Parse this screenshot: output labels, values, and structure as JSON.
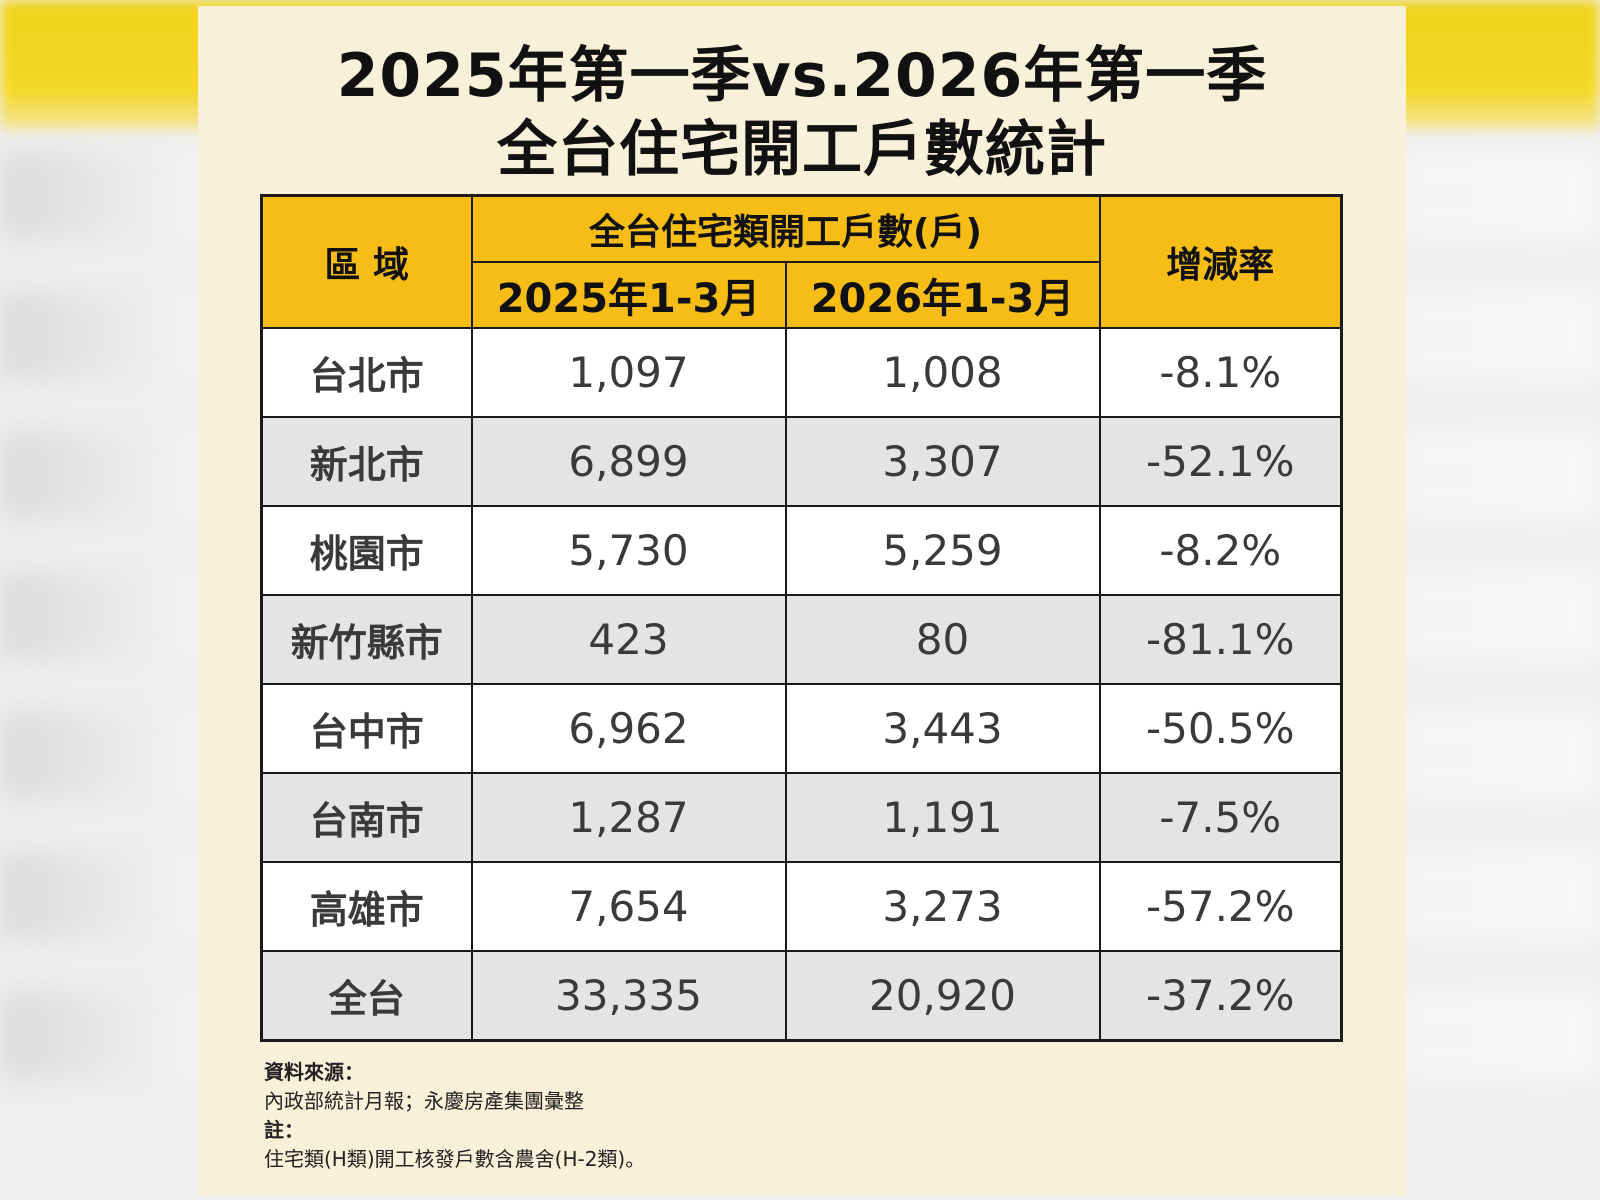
{
  "title_line1": "2025年第一季vs.2026年第一季",
  "title_line2": "全台住宅開工戶數統計",
  "chart_data": {
    "type": "table",
    "header": {
      "region": "區 域",
      "group": "全台住宅類開工戶數(戶)",
      "col_2025": "2025年1-3月",
      "col_2026": "2026年1-3月",
      "change": "增減率"
    },
    "rows": [
      {
        "region": "台北市",
        "v2025": "1,097",
        "v2026": "1,008",
        "change": "-8.1%"
      },
      {
        "region": "新北市",
        "v2025": "6,899",
        "v2026": "3,307",
        "change": "-52.1%"
      },
      {
        "region": "桃園市",
        "v2025": "5,730",
        "v2026": "5,259",
        "change": "-8.2%"
      },
      {
        "region": "新竹縣市",
        "v2025": "423",
        "v2026": "80",
        "change": "-81.1%"
      },
      {
        "region": "台中市",
        "v2025": "6,962",
        "v2026": "3,443",
        "change": "-50.5%"
      },
      {
        "region": "台南市",
        "v2025": "1,287",
        "v2026": "1,191",
        "change": "-7.5%"
      },
      {
        "region": "高雄市",
        "v2025": "7,654",
        "v2026": "3,273",
        "change": "-57.2%"
      },
      {
        "region": "全台",
        "v2025": "33,335",
        "v2026": "20,920",
        "change": "-37.2%"
      }
    ]
  },
  "notes": {
    "source_label": "資料來源：",
    "source_text": "內政部統計月報；永慶房產集團彙整",
    "note_label": "註：",
    "note_text": "住宅類(H類)開工核發戶數含農舍(H-2類)。"
  }
}
